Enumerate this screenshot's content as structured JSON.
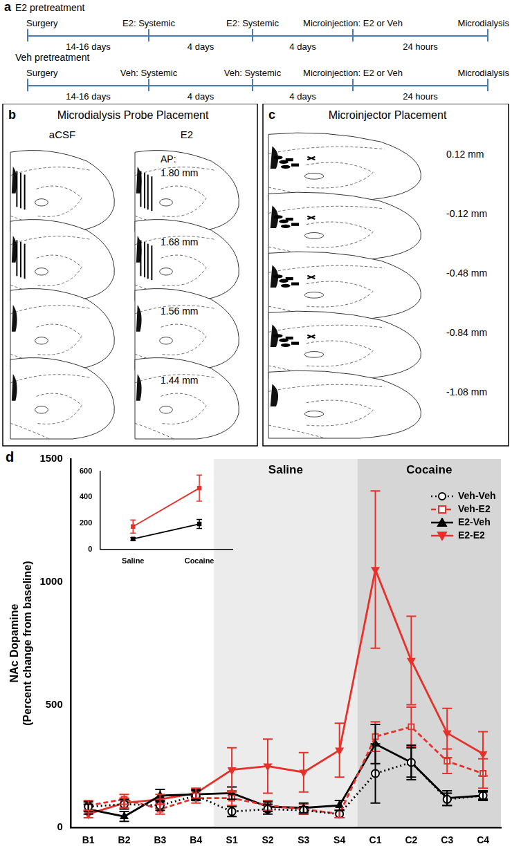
{
  "timeline": {
    "label": "a",
    "rows": [
      {
        "title": "E2 pretreatment",
        "events": [
          "Surgery",
          "E2: Systemic",
          "E2: Systemic",
          "Microinjection: E2 or Veh",
          "Microdialysis"
        ],
        "intervals": [
          "14-16 days",
          "4 days",
          "4 days",
          "24 hours"
        ]
      },
      {
        "title": "Veh pretreatment",
        "events": [
          "Surgery",
          "Veh: Systemic",
          "Veh: Systemic",
          "Microinjection: E2 or Veh",
          "Microdialysis"
        ],
        "intervals": [
          "14-16 days",
          "4 days",
          "4 days",
          "24 hours"
        ]
      }
    ]
  },
  "probe_placement": {
    "label": "b",
    "title": "Microdialysis Probe Placement",
    "groups": [
      "aCSF",
      "E2"
    ],
    "ap_prefix": "AP:",
    "levels": [
      "1.80 mm",
      "1.68 mm",
      "1.56 mm",
      "1.44 mm"
    ]
  },
  "injector_placement": {
    "label": "c",
    "title": "Microinjector Placement",
    "levels": [
      "0.12 mm",
      "-0.12 mm",
      "-0.48 mm",
      "-0.84 mm",
      "-1.08 mm"
    ]
  },
  "panel_d": {
    "label": "d"
  },
  "chart_data": [
    {
      "type": "line",
      "ylabel": [
        "NAc Dopamine",
        "(Percent change from baseline)"
      ],
      "categories": [
        "B1",
        "B2",
        "B3",
        "B4",
        "S1",
        "S2",
        "S3",
        "S4",
        "C1",
        "C2",
        "C3",
        "C4"
      ],
      "series": [
        {
          "name": "Veh-Veh",
          "color": "#000000",
          "marker": "circle_open",
          "line_style": "dotted",
          "values": [
            85,
            95,
            90,
            130,
            65,
            75,
            70,
            55,
            220,
            265,
            115,
            130
          ],
          "errors": [
            20,
            20,
            20,
            20,
            20,
            20,
            15,
            15,
            120,
            60,
            25,
            20
          ]
        },
        {
          "name": "Veh-E2",
          "color": "#e8302a",
          "marker": "square_open",
          "line_style": "dashed",
          "values": [
            90,
            115,
            75,
            120,
            120,
            90,
            75,
            55,
            370,
            410,
            270,
            220
          ],
          "errors": [
            20,
            20,
            20,
            20,
            30,
            20,
            20,
            15,
            60,
            80,
            50,
            60
          ]
        },
        {
          "name": "E2-Veh",
          "color": "#000000",
          "marker": "triangle",
          "line_style": "solid",
          "values": [
            75,
            45,
            130,
            135,
            140,
            85,
            80,
            90,
            340,
            265,
            120,
            130
          ],
          "errors": [
            20,
            20,
            25,
            20,
            25,
            20,
            20,
            20,
            80,
            70,
            30,
            15
          ]
        },
        {
          "name": "E2-E2",
          "color": "#e8302a",
          "marker": "triangle_down",
          "line_style": "solid",
          "values": [
            55,
            100,
            115,
            140,
            235,
            250,
            225,
            315,
            1050,
            680,
            385,
            300
          ],
          "errors": [
            15,
            20,
            20,
            20,
            90,
            110,
            80,
            110,
            320,
            180,
            100,
            90
          ]
        }
      ],
      "ylim": [
        0,
        1500
      ],
      "yticks": [
        0,
        500,
        1000,
        1500
      ],
      "grid": false,
      "legend": "upper right",
      "annotations": [
        {
          "text": "Saline",
          "from": "S1",
          "to": "S4"
        },
        {
          "text": "Cocaine",
          "from": "C1",
          "to": "C4"
        }
      ]
    },
    {
      "type": "line",
      "categories": [
        "Saline",
        "Cocaine"
      ],
      "series": [
        {
          "color": "#e8302a",
          "marker": "square",
          "line_style": "solid",
          "values": [
            175,
            470
          ],
          "errors": [
            50,
            100
          ]
        },
        {
          "color": "#000000",
          "marker": "square",
          "line_style": "solid",
          "values": [
            80,
            195
          ],
          "errors": [
            10,
            35
          ]
        }
      ],
      "ylim": [
        0,
        600
      ],
      "yticks": [
        0,
        200,
        400,
        600
      ],
      "grid": false
    }
  ]
}
